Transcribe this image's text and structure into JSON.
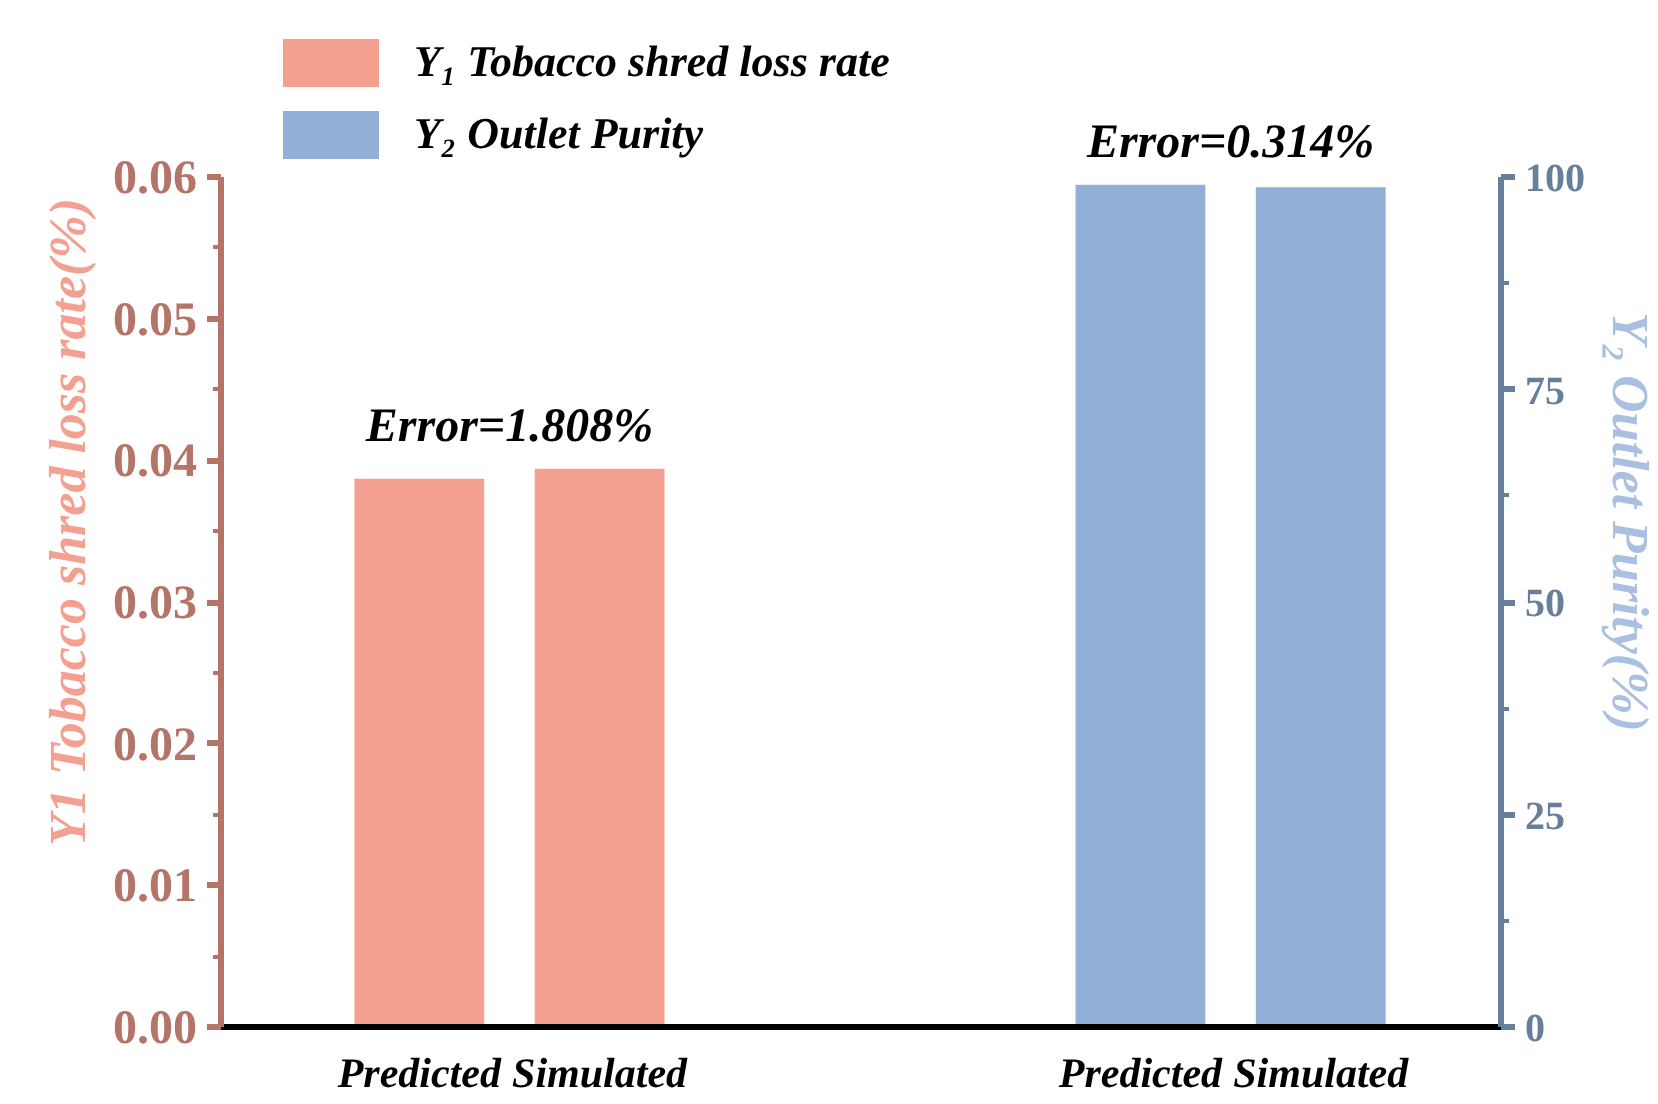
{
  "chart_data": {
    "type": "bar",
    "categories": [
      "Predicted",
      "Simulated",
      "Predicted",
      "Simulated"
    ],
    "series": [
      {
        "name": "Y₁ Tobacco shred loss rate",
        "color": "#f4a090",
        "values": [
          0.0387,
          0.0394,
          null,
          null
        ]
      },
      {
        "name": "Y₂ Outlet Purity",
        "color": "#92afd7",
        "axis": "y2",
        "values": [
          null,
          null,
          99.1,
          98.8
        ]
      }
    ],
    "ylabel": "Y1 Tobacco shred loss rate(%)",
    "y2label": "Y₂ Outlet Purity(%)",
    "ylim": [
      0,
      0.06
    ],
    "yticks": [
      {
        "value": 0,
        "label": "0.00"
      },
      {
        "value": 0.01,
        "label": "0.01"
      },
      {
        "value": 0.02,
        "label": "0.02"
      },
      {
        "value": 0.03,
        "label": "0.03"
      },
      {
        "value": 0.04,
        "label": "0.04"
      },
      {
        "value": 0.05,
        "label": "0.05"
      },
      {
        "value": 0.06,
        "label": "0.06"
      }
    ],
    "y2lim": [
      0,
      100
    ],
    "y2ticks": [
      0,
      25,
      50,
      75,
      100
    ],
    "annotations": [
      "Error=1.808%",
      "Error=0.314%"
    ],
    "grid": false,
    "legend": "top left"
  }
}
